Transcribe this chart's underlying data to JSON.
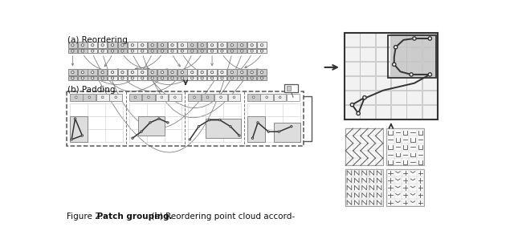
{
  "bg_color": "#ffffff",
  "lc": "#888888",
  "dc": "#333333",
  "mc": "#666666",
  "hl": "#cccccc",
  "nonhl": "#eeeeee",
  "fig_width": 6.4,
  "fig_height": 3.08,
  "caption": "Figure 2. ",
  "caption_bold": "Patch grouping.",
  "caption_rest": " (a) Reordering point cloud accord-",
  "reorder_map": [
    0,
    8,
    16,
    4,
    12,
    1,
    9,
    17,
    5,
    13,
    2,
    10,
    18,
    6,
    14,
    3,
    11,
    19,
    7,
    15
  ]
}
